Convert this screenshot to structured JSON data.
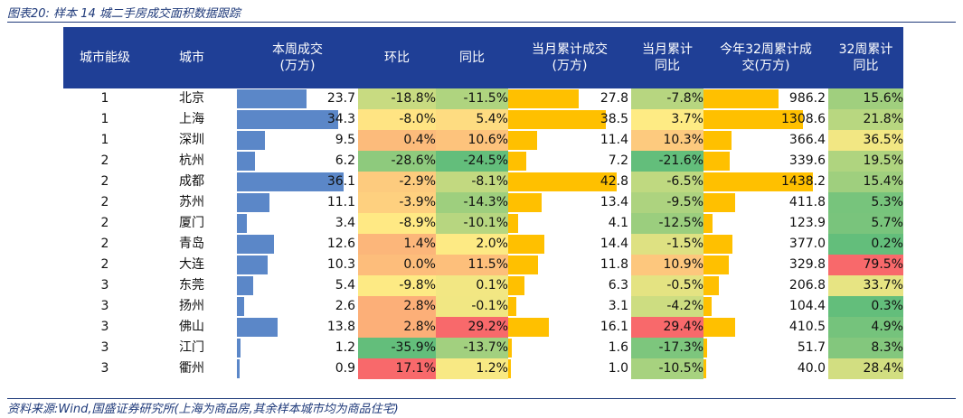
{
  "caption": "图表20:  样本 14 城二手房成交面积数据跟踪",
  "footnote": "资料来源:Wind,国盛证券研究所(上海为商品房,其余样本城市均为商品住宅)",
  "headers": [
    "城市能级",
    "城市",
    "本周成交\n(万方)",
    "环比",
    "同比",
    "当月累计成交\n(万方)",
    "当月累计\n同比",
    "今年32周累计成\n交(万方)",
    "32周累计\n同比"
  ],
  "colors": {
    "header_bg": "#1f3f96",
    "bar_blue": "#5b87c8",
    "bar_orange": "#ffc000"
  },
  "rows": [
    {
      "tier": "1",
      "city": "北京",
      "week": "23.7",
      "wow": "-18.8%",
      "yoy": "-11.5%",
      "month": "27.8",
      "month_yoy": "-7.8%",
      "ytd": "986.2",
      "ytd_yoy": "15.6%"
    },
    {
      "tier": "1",
      "city": "上海",
      "week": "34.3",
      "wow": "-8.0%",
      "yoy": "5.4%",
      "month": "38.5",
      "month_yoy": "3.7%",
      "ytd": "1308.6",
      "ytd_yoy": "21.8%"
    },
    {
      "tier": "1",
      "city": "深圳",
      "week": "9.5",
      "wow": "0.4%",
      "yoy": "10.6%",
      "month": "11.4",
      "month_yoy": "10.3%",
      "ytd": "366.4",
      "ytd_yoy": "36.5%"
    },
    {
      "tier": "2",
      "city": "杭州",
      "week": "6.2",
      "wow": "-28.6%",
      "yoy": "-24.5%",
      "month": "7.2",
      "month_yoy": "-21.6%",
      "ytd": "339.6",
      "ytd_yoy": "19.5%"
    },
    {
      "tier": "2",
      "city": "成都",
      "week": "36.1",
      "wow": "-2.9%",
      "yoy": "-8.1%",
      "month": "42.8",
      "month_yoy": "-6.5%",
      "ytd": "1438.2",
      "ytd_yoy": "15.4%"
    },
    {
      "tier": "2",
      "city": "苏州",
      "week": "11.1",
      "wow": "-3.9%",
      "yoy": "-14.3%",
      "month": "13.4",
      "month_yoy": "-9.5%",
      "ytd": "411.8",
      "ytd_yoy": "5.3%"
    },
    {
      "tier": "2",
      "city": "厦门",
      "week": "3.4",
      "wow": "-8.9%",
      "yoy": "-10.1%",
      "month": "4.1",
      "month_yoy": "-12.5%",
      "ytd": "123.9",
      "ytd_yoy": "5.7%"
    },
    {
      "tier": "2",
      "city": "青岛",
      "week": "12.6",
      "wow": "1.4%",
      "yoy": "2.0%",
      "month": "14.4",
      "month_yoy": "-1.5%",
      "ytd": "377.0",
      "ytd_yoy": "0.2%"
    },
    {
      "tier": "2",
      "city": "大连",
      "week": "10.3",
      "wow": "0.0%",
      "yoy": "11.5%",
      "month": "11.8",
      "month_yoy": "10.9%",
      "ytd": "329.8",
      "ytd_yoy": "79.5%"
    },
    {
      "tier": "3",
      "city": "东莞",
      "week": "5.4",
      "wow": "-9.8%",
      "yoy": "0.1%",
      "month": "6.3",
      "month_yoy": "-0.5%",
      "ytd": "206.8",
      "ytd_yoy": "33.7%"
    },
    {
      "tier": "3",
      "city": "扬州",
      "week": "2.6",
      "wow": "2.8%",
      "yoy": "-0.1%",
      "month": "3.1",
      "month_yoy": "-4.2%",
      "ytd": "104.4",
      "ytd_yoy": "0.3%"
    },
    {
      "tier": "3",
      "city": "佛山",
      "week": "13.8",
      "wow": "2.8%",
      "yoy": "29.2%",
      "month": "16.1",
      "month_yoy": "29.4%",
      "ytd": "410.5",
      "ytd_yoy": "4.9%"
    },
    {
      "tier": "3",
      "city": "江门",
      "week": "1.2",
      "wow": "-35.9%",
      "yoy": "-13.7%",
      "month": "1.6",
      "month_yoy": "-17.3%",
      "ytd": "51.7",
      "ytd_yoy": "8.3%"
    },
    {
      "tier": "3",
      "city": "衢州",
      "week": "0.9",
      "wow": "17.1%",
      "yoy": "1.2%",
      "month": "1.0",
      "month_yoy": "-10.5%",
      "ytd": "40.0",
      "ytd_yoy": "28.4%"
    }
  ]
}
